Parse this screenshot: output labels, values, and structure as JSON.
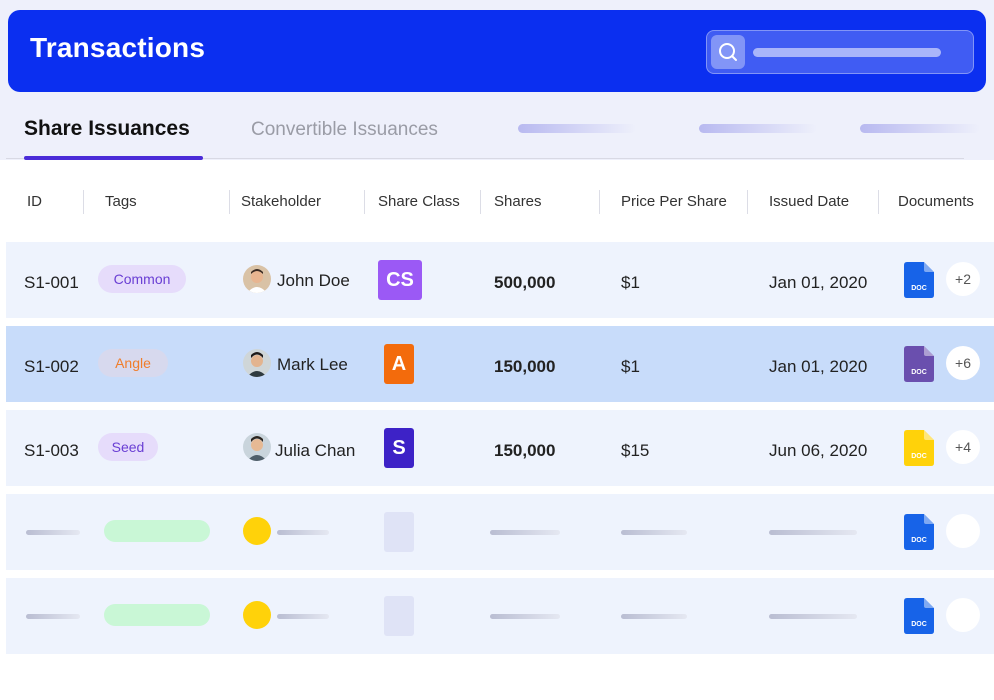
{
  "header": {
    "title": "Transactions"
  },
  "tabs": {
    "active": "Share Issuances",
    "inactive": "Convertible Issuances"
  },
  "columns": {
    "id": "ID",
    "tags": "Tags",
    "stakeholder": "Stakeholder",
    "share_class": "Share Class",
    "shares": "Shares",
    "price": "Price Per Share",
    "issued": "Issued Date",
    "documents": "Documents"
  },
  "rows": [
    {
      "id": "S1-001",
      "tag": "Common",
      "tag_color": "#6a3fd4",
      "tag_bg": "#e6dcfb",
      "stakeholder": "John Doe",
      "share_class": "CS",
      "class_color": "#9b59f5",
      "shares": "500,000",
      "price": "$1",
      "issued": "Jan 01, 2020",
      "doc_label": "DOC",
      "doc_color": "#1763e8",
      "more": "+2"
    },
    {
      "id": "S1-002",
      "tag": "Angle",
      "tag_color": "#f07d2a",
      "tag_bg": "#d7d9ee",
      "stakeholder": "Mark Lee",
      "share_class": "A",
      "class_color": "#f36b0c",
      "shares": "150,000",
      "price": "$1",
      "issued": "Jan 01, 2020",
      "doc_label": "DOC",
      "doc_color": "#6a4fae",
      "more": "+6"
    },
    {
      "id": "S1-003",
      "tag": "Seed",
      "tag_color": "#6a3fd4",
      "tag_bg": "#e6dcfb",
      "stakeholder": "Julia Chan",
      "share_class": "S",
      "class_color": "#3d22c7",
      "shares": "150,000",
      "price": "$15",
      "issued": "Jun 06, 2020",
      "doc_label": "DOC",
      "doc_color": "#ffd20a",
      "more": "+4"
    }
  ],
  "placeholder_rows": [
    {
      "doc_label": "DOC",
      "doc_color": "#1763e8"
    },
    {
      "doc_label": "DOC",
      "doc_color": "#1763e8"
    }
  ],
  "colors": {
    "header": "#0b2ff0",
    "tab_underline": "#4a2bd8",
    "selected_row": "#c8dcfa"
  }
}
